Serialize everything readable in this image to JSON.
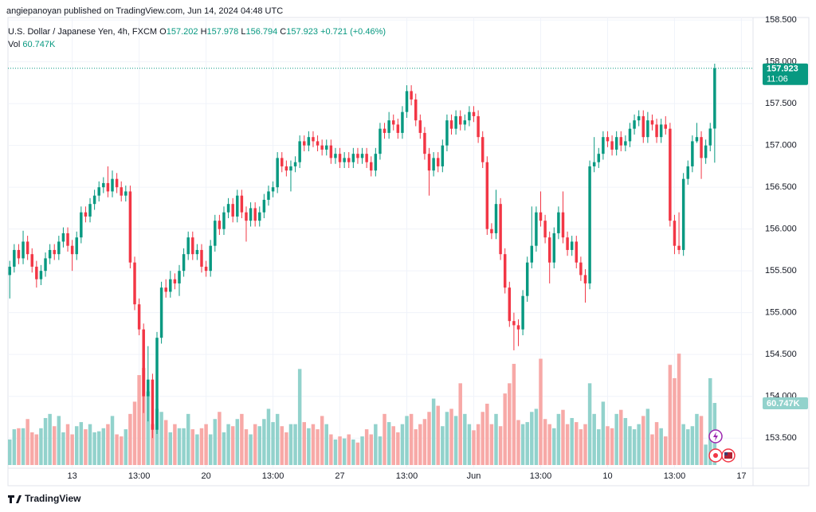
{
  "chart_data": {
    "type": "candlestick",
    "publisher": "angiepanoyan published on TradingView.com, Jun 14, 2024 04:48 UTC",
    "legend": {
      "symbol": "U.S. Dollar / Japanese Yen, 4h, FXCM",
      "o_label": "O",
      "o": "157.202",
      "h_label": "H",
      "h": "157.978",
      "l_label": "L",
      "l": "156.794",
      "c_label": "C",
      "c": "157.923",
      "change": "+0.721 (+0.46%)",
      "vol_label": "Vol",
      "vol": "60.747K"
    },
    "countdown": "11:06",
    "footer": "TradingView",
    "up_color": "#089981",
    "down_color": "#f23645",
    "volume_up_color": "#92d2cc",
    "volume_down_color": "#f7a9a7",
    "grid": true,
    "xlim": [
      -0.4,
      166.6
    ],
    "ylim": [
      153.14,
      158.53
    ],
    "volume_ylim": [
      0,
      180
    ],
    "xticks": [
      {
        "value": 14,
        "label": "13"
      },
      {
        "value": 29,
        "label": "13:00"
      },
      {
        "value": 44,
        "label": "20"
      },
      {
        "value": 59,
        "label": "13:00"
      },
      {
        "value": 74,
        "label": "27"
      },
      {
        "value": 89,
        "label": "13:00"
      },
      {
        "value": 104,
        "label": "Jun"
      },
      {
        "value": 119,
        "label": "13:00"
      },
      {
        "value": 134,
        "label": "10"
      },
      {
        "value": 149,
        "label": "13:00"
      },
      {
        "value": 164,
        "label": "17"
      }
    ],
    "yticks": [
      {
        "value": 153.5,
        "label": "153.500"
      },
      {
        "value": 154,
        "label": "154.000"
      },
      {
        "value": 154.5,
        "label": "154.500"
      },
      {
        "value": 155,
        "label": "155.000"
      },
      {
        "value": 155.5,
        "label": "155.500"
      },
      {
        "value": 156,
        "label": "156.000"
      },
      {
        "value": 156.5,
        "label": "156.500"
      },
      {
        "value": 157,
        "label": "157.000"
      },
      {
        "value": 157.5,
        "label": "157.500"
      },
      {
        "value": 158,
        "label": "158.000"
      },
      {
        "value": 158.5,
        "label": "158.500"
      }
    ],
    "open": [
      155.45,
      155.55,
      155.75,
      155.65,
      155.85,
      155.7,
      155.55,
      155.4,
      155.5,
      155.65,
      155.75,
      155.7,
      155.85,
      155.95,
      155.8,
      155.7,
      155.9,
      156.2,
      156.15,
      156.3,
      156.4,
      156.5,
      156.55,
      156.45,
      156.6,
      156.5,
      156.4,
      156.45,
      155.6,
      155.1,
      154.8,
      154.0,
      154.2,
      153.6,
      154.7,
      155.3,
      155.25,
      155.4,
      155.35,
      155.5,
      155.7,
      155.9,
      155.7,
      155.75,
      155.55,
      155.5,
      155.8,
      156.1,
      156.0,
      156.2,
      156.3,
      156.15,
      156.4,
      156.2,
      156.1,
      156.25,
      156.1,
      156.2,
      156.35,
      156.45,
      156.5,
      156.85,
      156.75,
      156.7,
      156.75,
      156.8,
      157.05,
      157.0,
      157.1,
      157.05,
      157.0,
      156.95,
      157.0,
      156.85,
      156.9,
      156.8,
      156.85,
      156.8,
      156.9,
      156.85,
      156.9,
      156.8,
      156.7,
      156.9,
      157.2,
      157.15,
      157.3,
      157.25,
      157.15,
      157.4,
      157.65,
      157.55,
      157.3,
      157.15,
      156.9,
      156.7,
      156.85,
      156.75,
      157.0,
      157.3,
      157.2,
      157.35,
      157.25,
      157.3,
      157.4,
      157.35,
      157.1,
      156.8,
      156.0,
      155.95,
      156.3,
      155.7,
      155.3,
      154.9,
      154.85,
      154.8,
      155.2,
      155.6,
      155.8,
      156.2,
      156.1,
      155.9,
      155.6,
      155.95,
      156.2,
      155.9,
      155.75,
      155.85,
      155.6,
      155.45,
      155.35,
      156.75,
      156.8,
      156.9,
      157.1,
      157.05,
      156.95,
      157.1,
      157.0,
      157.05,
      157.2,
      157.3,
      157.35,
      157.1,
      157.3,
      157.25,
      157.1,
      157.25,
      157.2,
      156.1,
      155.8,
      155.75,
      156.6,
      156.75,
      157.05,
      157.1,
      156.85,
      157.0,
      157.202
    ],
    "high": [
      155.62,
      155.82,
      155.82,
      155.98,
      155.92,
      155.77,
      155.62,
      155.57,
      155.72,
      155.82,
      155.82,
      155.92,
      156.02,
      156.02,
      155.87,
      155.97,
      156.27,
      156.27,
      156.37,
      156.47,
      156.57,
      156.62,
      156.75,
      156.7,
      156.67,
      156.57,
      156.52,
      156.52,
      155.67,
      155.17,
      154.87,
      154.6,
      154.27,
      154.77,
      155.37,
      155.4,
      155.5,
      155.47,
      155.57,
      155.77,
      155.97,
      155.97,
      155.82,
      155.82,
      155.62,
      155.87,
      156.17,
      156.17,
      156.27,
      156.37,
      156.37,
      156.47,
      156.47,
      156.27,
      156.32,
      156.32,
      156.27,
      156.42,
      156.52,
      156.57,
      156.92,
      156.92,
      156.82,
      156.82,
      156.87,
      157.12,
      157.12,
      157.17,
      157.17,
      157.12,
      157.07,
      157.07,
      157.07,
      156.97,
      156.97,
      156.92,
      156.92,
      156.97,
      156.97,
      156.97,
      156.97,
      156.87,
      156.97,
      157.27,
      157.27,
      157.4,
      157.37,
      157.32,
      157.47,
      157.72,
      157.72,
      157.62,
      157.37,
      157.22,
      156.97,
      156.92,
      156.92,
      157.07,
      157.37,
      157.37,
      157.42,
      157.42,
      157.37,
      157.47,
      157.47,
      157.42,
      157.17,
      156.87,
      156.07,
      156.47,
      156.37,
      155.77,
      155.37,
      155.0,
      154.92,
      155.27,
      155.67,
      156.27,
      156.27,
      156.45,
      156.17,
      155.97,
      156.02,
      156.27,
      156.45,
      155.97,
      155.92,
      155.92,
      155.67,
      155.52,
      156.82,
      157.1,
      156.97,
      157.17,
      157.17,
      157.12,
      157.17,
      157.17,
      157.12,
      157.27,
      157.37,
      157.42,
      157.42,
      157.4,
      157.37,
      157.32,
      157.32,
      157.35,
      157.27,
      156.17,
      156.2,
      156.67,
      156.82,
      157.12,
      157.27,
      157.17,
      157.07,
      157.27,
      157.978
    ],
    "low": [
      155.17,
      155.48,
      155.58,
      155.58,
      155.63,
      155.48,
      155.3,
      155.33,
      155.43,
      155.58,
      155.63,
      155.63,
      155.78,
      155.73,
      155.5,
      155.63,
      155.83,
      156.08,
      156.08,
      156.23,
      156.33,
      156.43,
      156.38,
      156.38,
      156.43,
      156.33,
      156.33,
      155.53,
      155.03,
      154.73,
      153.8,
      153.7,
      153.5,
      153.55,
      154.63,
      155.18,
      155.18,
      155.28,
      155.2,
      155.43,
      155.63,
      155.63,
      155.63,
      155.48,
      155.43,
      155.43,
      155.73,
      155.93,
      155.93,
      156.13,
      156.08,
      156.08,
      156.13,
      155.85,
      156.03,
      156.03,
      156.03,
      156.13,
      156.28,
      156.38,
      156.43,
      156.68,
      156.63,
      156.45,
      156.68,
      156.73,
      156.93,
      156.93,
      156.98,
      156.93,
      156.88,
      156.88,
      156.78,
      156.78,
      156.73,
      156.73,
      156.73,
      156.73,
      156.78,
      156.78,
      156.73,
      156.63,
      156.63,
      156.83,
      157.08,
      157.08,
      157.18,
      157.08,
      157.08,
      157.33,
      157.48,
      157.23,
      157.08,
      156.83,
      156.4,
      156.63,
      156.68,
      156.68,
      156.93,
      157.13,
      157.13,
      157.18,
      157.18,
      157.23,
      157.28,
      157.03,
      156.73,
      155.93,
      155.88,
      155.88,
      155.63,
      155.23,
      154.83,
      154.55,
      154.6,
      154.73,
      155.13,
      155.53,
      155.73,
      156.03,
      155.83,
      155.35,
      155.53,
      155.88,
      155.83,
      155.68,
      155.68,
      155.53,
      155.38,
      155.12,
      155.28,
      156.68,
      156.73,
      156.83,
      156.98,
      156.88,
      156.88,
      156.93,
      156.93,
      156.98,
      157.13,
      157.23,
      157.03,
      157.03,
      157.18,
      157.03,
      157.03,
      157.13,
      156.03,
      155.7,
      155.7,
      155.68,
      156.53,
      156.68,
      157.03,
      156.6,
      156.78,
      156.93,
      156.794
    ],
    "close": [
      155.55,
      155.75,
      155.65,
      155.85,
      155.7,
      155.55,
      155.4,
      155.5,
      155.65,
      155.75,
      155.7,
      155.85,
      155.95,
      155.8,
      155.7,
      155.9,
      156.2,
      156.15,
      156.3,
      156.4,
      156.5,
      156.55,
      156.45,
      156.6,
      156.5,
      156.4,
      156.45,
      155.6,
      155.1,
      154.8,
      154.0,
      154.2,
      153.6,
      154.7,
      155.3,
      155.25,
      155.4,
      155.35,
      155.5,
      155.7,
      155.9,
      155.7,
      155.75,
      155.55,
      155.5,
      155.8,
      156.1,
      156.0,
      156.2,
      156.3,
      156.15,
      156.4,
      156.2,
      156.1,
      156.25,
      156.1,
      156.2,
      156.35,
      156.45,
      156.5,
      156.85,
      156.75,
      156.7,
      156.75,
      156.8,
      157.05,
      157.0,
      157.1,
      157.05,
      157.0,
      156.95,
      157.0,
      156.85,
      156.9,
      156.8,
      156.85,
      156.8,
      156.9,
      156.85,
      156.9,
      156.8,
      156.7,
      156.9,
      157.2,
      157.15,
      157.3,
      157.25,
      157.15,
      157.4,
      157.65,
      157.55,
      157.3,
      157.15,
      156.9,
      156.7,
      156.85,
      156.75,
      157.0,
      157.3,
      157.2,
      157.35,
      157.25,
      157.3,
      157.4,
      157.35,
      157.1,
      156.8,
      156.0,
      155.95,
      156.3,
      155.7,
      155.3,
      154.9,
      154.85,
      154.8,
      155.2,
      155.6,
      155.8,
      156.2,
      156.1,
      155.9,
      155.6,
      155.95,
      156.2,
      155.9,
      155.75,
      155.85,
      155.6,
      155.45,
      155.35,
      156.75,
      156.8,
      156.9,
      157.1,
      157.05,
      156.95,
      157.1,
      157.0,
      157.05,
      157.2,
      157.3,
      157.35,
      157.1,
      157.3,
      157.25,
      157.1,
      157.25,
      157.2,
      156.1,
      155.8,
      155.75,
      156.6,
      156.75,
      157.05,
      157.1,
      156.85,
      157.0,
      157.202,
      157.923
    ],
    "volume": [
      25,
      35,
      36,
      36,
      45,
      32,
      30,
      36,
      46,
      50,
      38,
      48,
      32,
      40,
      30,
      38,
      42,
      35,
      40,
      32,
      33,
      36,
      40,
      48,
      30,
      28,
      35,
      50,
      62,
      88,
      95,
      72,
      40,
      55,
      52,
      44,
      32,
      40,
      36,
      36,
      50,
      35,
      30,
      36,
      40,
      30,
      45,
      52,
      32,
      40,
      38,
      45,
      50,
      35,
      30,
      40,
      38,
      45,
      55,
      42,
      50,
      38,
      32,
      40,
      40,
      94,
      42,
      36,
      40,
      35,
      48,
      40,
      30,
      25,
      28,
      26,
      30,
      25,
      22,
      28,
      35,
      30,
      40,
      28,
      50,
      42,
      38,
      32,
      40,
      48,
      50,
      35,
      40,
      45,
      52,
      65,
      58,
      38,
      52,
      55,
      48,
      80,
      50,
      40,
      34,
      40,
      52,
      60,
      40,
      50,
      38,
      70,
      80,
      99,
      44,
      40,
      42,
      52,
      55,
      104,
      45,
      40,
      36,
      50,
      54,
      40,
      46,
      42,
      35,
      40,
      80,
      50,
      35,
      62,
      38,
      36,
      50,
      54,
      46,
      38,
      35,
      40,
      48,
      55,
      30,
      42,
      36,
      28,
      98,
      85,
      109,
      40,
      35,
      38,
      50,
      48,
      20,
      85,
      60.747
    ]
  }
}
